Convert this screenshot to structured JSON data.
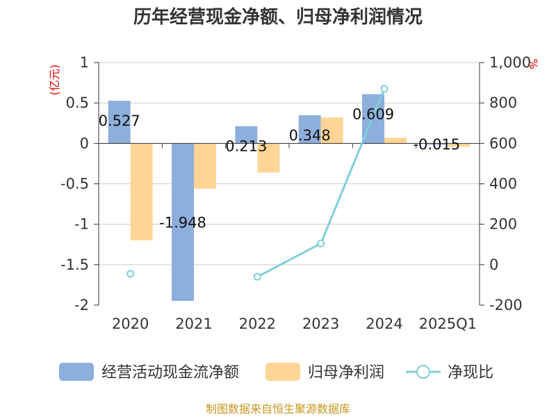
{
  "title": "历年经营现金净额、归母净利润情况",
  "source": "制图数据来自恒生聚源数据库",
  "colors": {
    "cash_flow": "#8eaedc",
    "net_profit": "#ffd595",
    "ratio_line": "#7fcfd8",
    "grid": "#cccccc",
    "axis": "#333333",
    "unit_red": "#e60000",
    "source": "#c8961e"
  },
  "chart_data": {
    "type": "bar",
    "categories": [
      "2020",
      "2021",
      "2022",
      "2023",
      "2024",
      "2025Q1"
    ],
    "left_axis": {
      "unit": "(亿元)",
      "ylim": [
        -2,
        1
      ],
      "ticks": [
        1,
        0.5,
        0,
        -0.5,
        -1,
        -1.5,
        -2
      ],
      "tick_labels": [
        "1",
        "0.5",
        "0",
        "-0.5",
        "-1",
        "-1.5",
        "-2"
      ]
    },
    "right_axis": {
      "unit": "%",
      "ylim": [
        -200,
        1000
      ],
      "ticks": [
        1000,
        800,
        600,
        400,
        200,
        0,
        -200
      ],
      "tick_labels": [
        "1,000",
        "800",
        "600",
        "400",
        "200",
        "0",
        "-200"
      ]
    },
    "series": [
      {
        "name": "经营活动现金流净额",
        "type": "bar",
        "axis": "left",
        "values": [
          0.527,
          -1.948,
          0.213,
          0.348,
          0.609,
          -0.015
        ],
        "labels": [
          "0.527",
          "-1.948",
          "0.213",
          "0.348",
          "0.609",
          "-0.015"
        ]
      },
      {
        "name": "归母净利润",
        "type": "bar",
        "axis": "left",
        "values": [
          -1.2,
          -0.56,
          -0.36,
          0.32,
          0.07,
          -0.04
        ]
      },
      {
        "name": "净现比",
        "type": "line",
        "axis": "right",
        "values": [
          -45,
          null,
          -60,
          105,
          870,
          null
        ]
      }
    ],
    "grid": true,
    "legend_position": "bottom"
  }
}
